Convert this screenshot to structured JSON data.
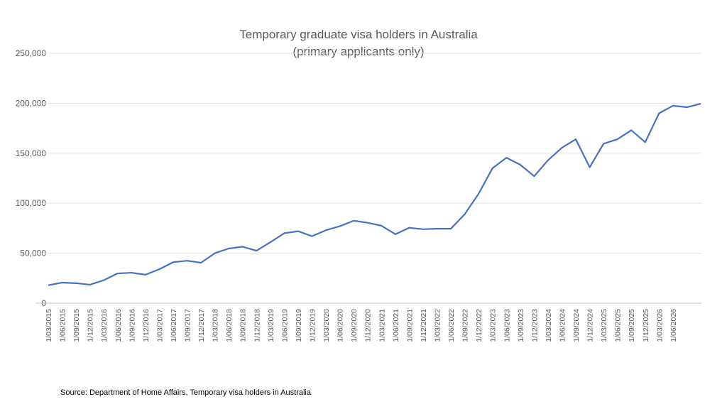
{
  "chart_data": {
    "type": "line",
    "title": [
      "Temporary graduate visa holders in Australia",
      "(primary applicants only)"
    ],
    "source": "Source: Department of Home Affairs, Temporary visa holders in Australia",
    "categories": [
      "1/03/2015",
      "1/06/2015",
      "1/09/2015",
      "1/12/2015",
      "1/03/2016",
      "1/06/2016",
      "1/09/2016",
      "1/12/2016",
      "1/03/2017",
      "1/06/2017",
      "1/09/2017",
      "1/12/2017",
      "1/03/2018",
      "1/06/2018",
      "1/09/2018",
      "1/12/2018",
      "1/03/2019",
      "1/06/2019",
      "1/09/2019",
      "1/12/2019",
      "1/03/2020",
      "1/06/2020",
      "1/09/2020",
      "1/12/2020",
      "1/03/2021",
      "1/06/2021",
      "1/09/2021",
      "1/12/2021",
      "1/03/2022",
      "1/06/2022",
      "1/09/2022",
      "1/12/2022",
      "1/03/2023",
      "1/06/2023",
      "1/09/2023",
      "1/12/2023",
      "1/03/2024",
      "1/06/2024",
      "1/09/2024",
      "1/12/2024",
      "1/03/2025",
      "1/06/2025",
      "1/09/2025",
      "1/12/2025",
      "1/03/2026",
      "1/06/2026",
      null,
      null
    ],
    "series": [
      {
        "color": "#4472c4",
        "values": [
          18000,
          20600,
          20000,
          18500,
          23000,
          29800,
          30500,
          28500,
          34000,
          41000,
          42500,
          40500,
          50000,
          54700,
          56500,
          52500,
          61000,
          70000,
          72000,
          67000,
          73000,
          77000,
          82500,
          80500,
          77500,
          69000,
          75500,
          74000,
          74500,
          74500,
          89000,
          109500,
          135000,
          145500,
          138500,
          127000,
          143000,
          155500,
          164000,
          136000,
          159500,
          164000,
          173000,
          161000,
          190000,
          197500,
          196000,
          199500
        ]
      }
    ],
    "ylim": [
      0,
      250000
    ],
    "yticks": [
      0,
      {
        "value": 50000,
        "label": "50,000"
      },
      {
        "value": 100000,
        "label": "100,000"
      },
      {
        "value": 150000,
        "label": "150,000"
      },
      {
        "value": 200000,
        "label": "200,000"
      },
      {
        "value": 250000,
        "label": "250,000"
      }
    ],
    "grid": true
  }
}
